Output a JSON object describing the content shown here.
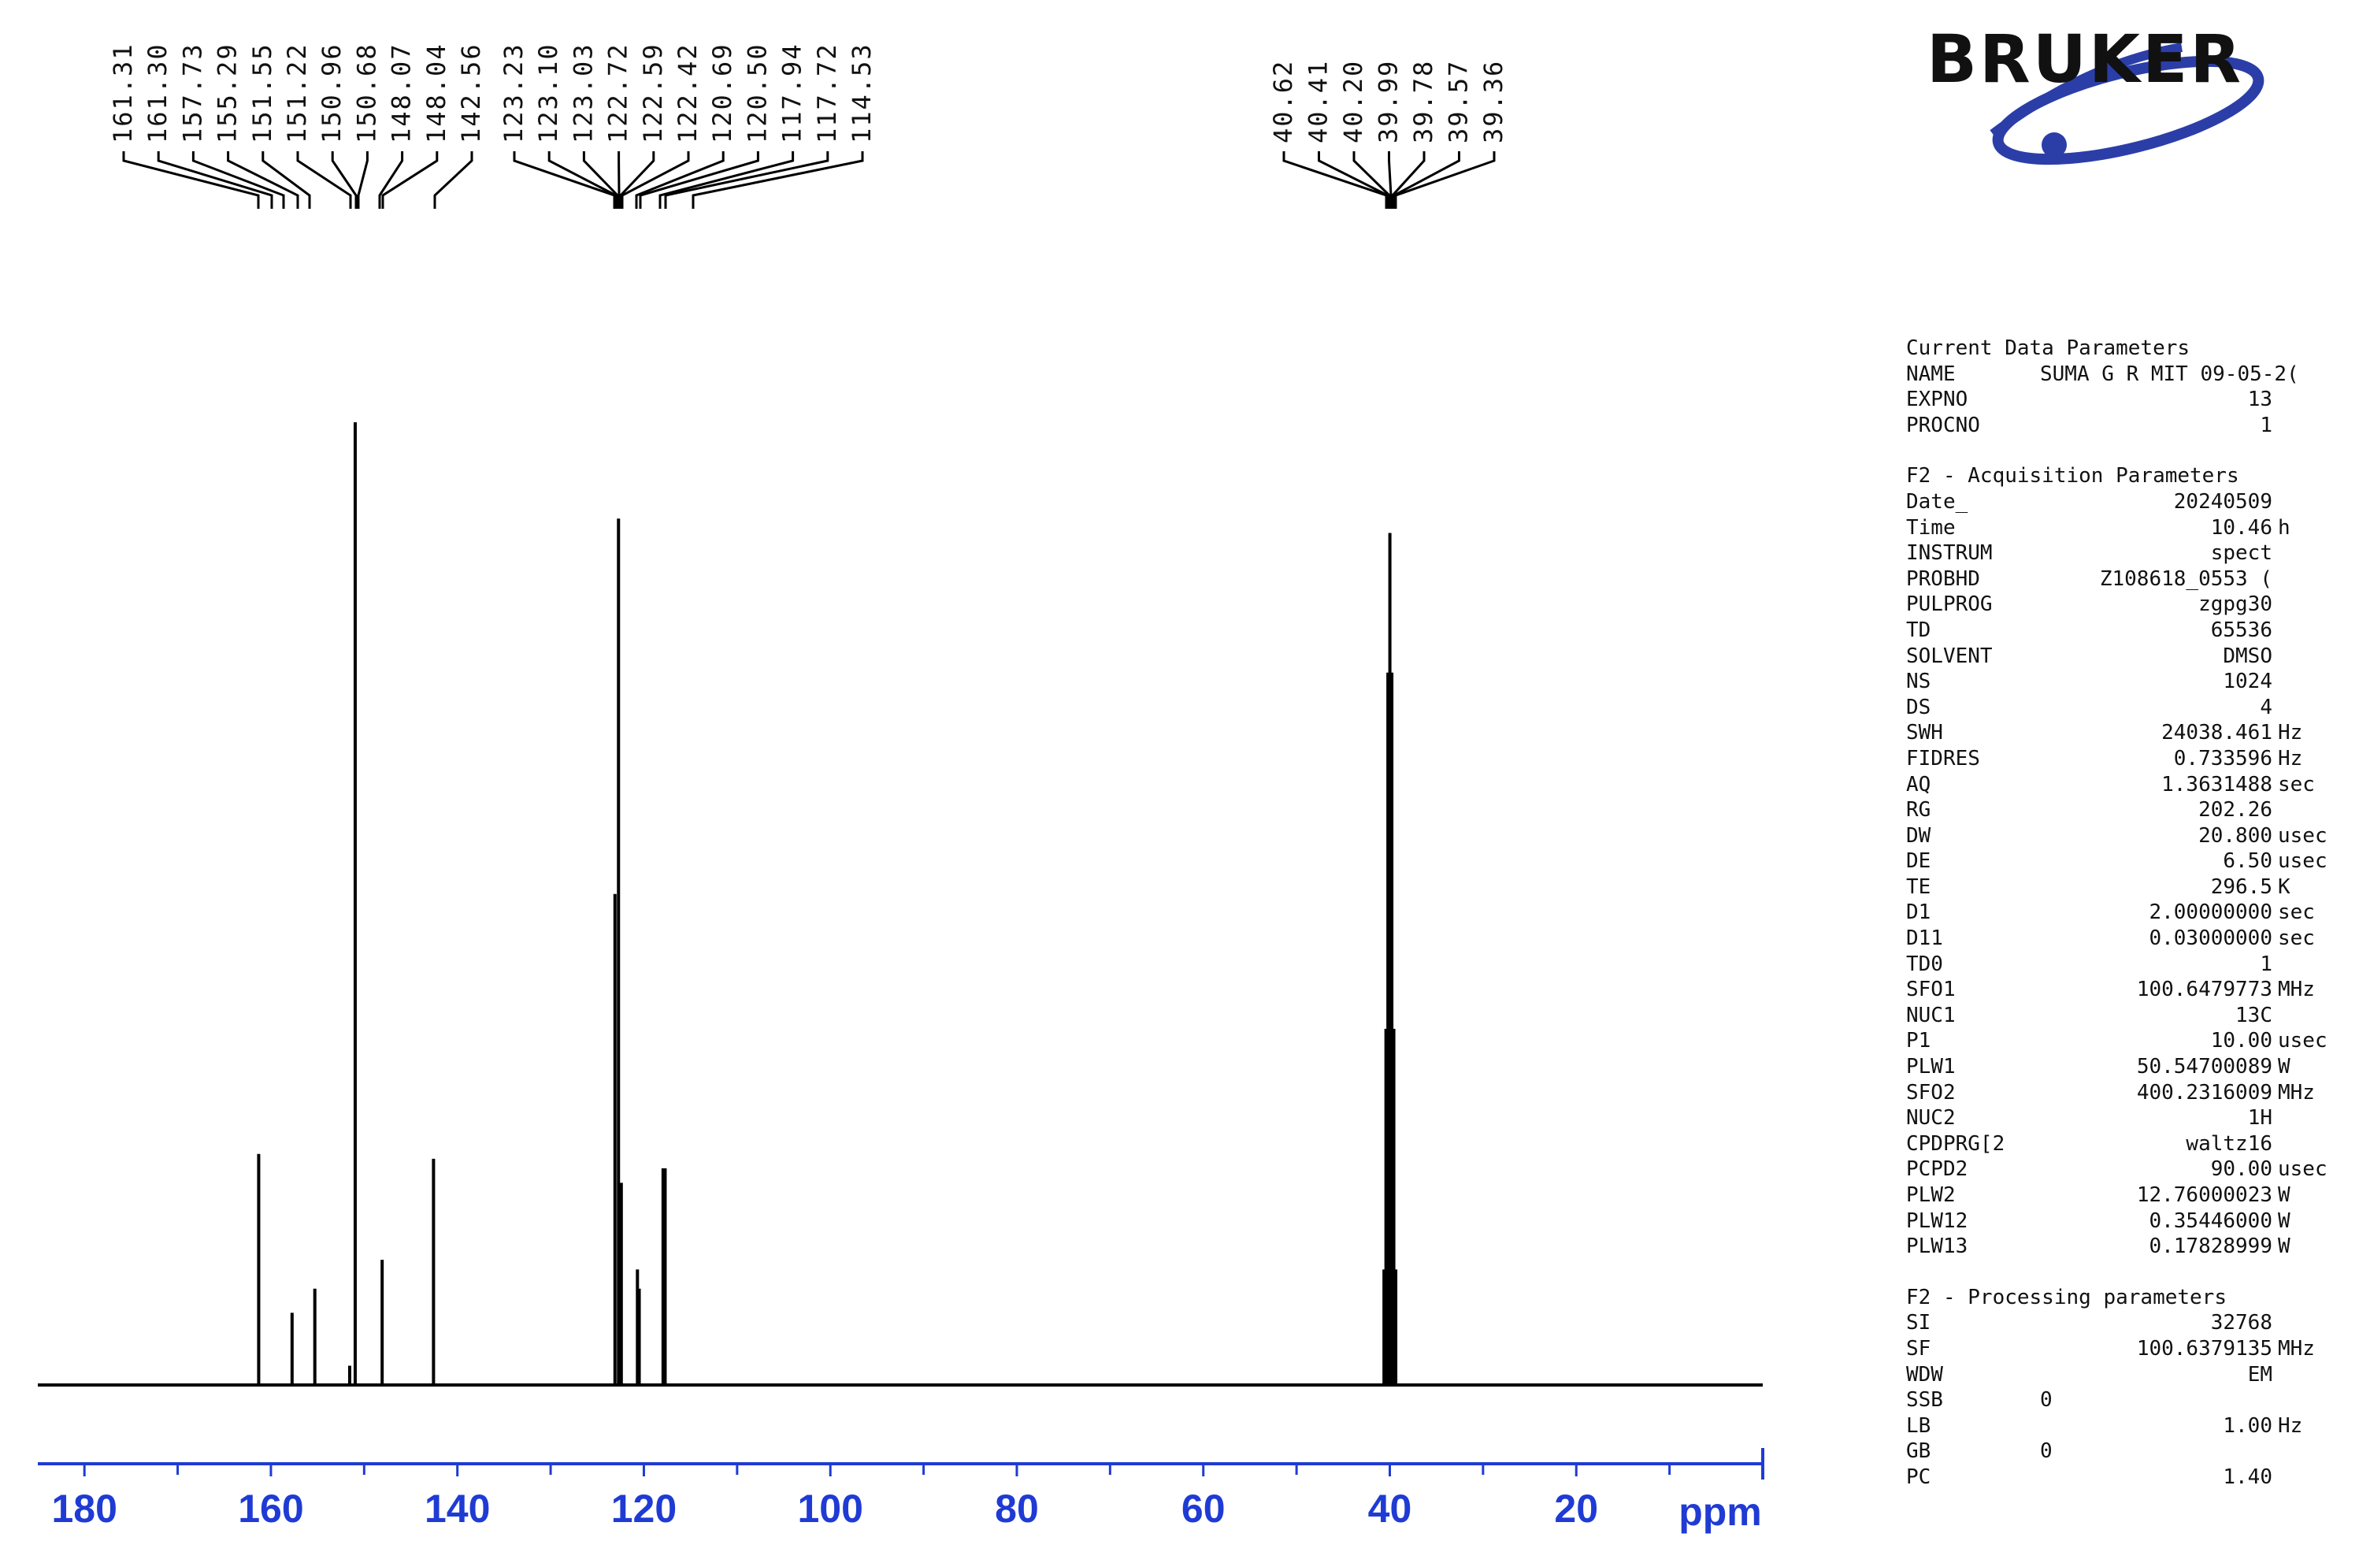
{
  "brand": {
    "logo_text": "BRUKER",
    "logo_color": "#2b3ea8"
  },
  "chart_data": {
    "type": "line",
    "x_axis": {
      "label": "ppm",
      "reversed": true,
      "range": [
        185,
        0
      ],
      "ticks": [
        180,
        160,
        140,
        120,
        100,
        80,
        60,
        40,
        20
      ],
      "minor_step": 10,
      "color": "#1f3bd4"
    },
    "peaks": [
      {
        "ppm": 161.31,
        "height": 0.24
      },
      {
        "ppm": 157.73,
        "height": 0.075
      },
      {
        "ppm": 155.29,
        "height": 0.1
      },
      {
        "ppm": 151.55,
        "height": 0.02
      },
      {
        "ppm": 150.96,
        "height": 1.0
      },
      {
        "ppm": 148.07,
        "height": 0.13
      },
      {
        "ppm": 142.56,
        "height": 0.235
      },
      {
        "ppm": 123.1,
        "height": 0.51
      },
      {
        "ppm": 122.72,
        "height": 0.9
      },
      {
        "ppm": 122.42,
        "height": 0.21
      },
      {
        "ppm": 120.69,
        "height": 0.12
      },
      {
        "ppm": 120.5,
        "height": 0.1
      },
      {
        "ppm": 117.94,
        "height": 0.225
      },
      {
        "ppm": 117.72,
        "height": 0.225
      },
      {
        "ppm": 40.62,
        "height": 0.12
      },
      {
        "ppm": 40.41,
        "height": 0.37
      },
      {
        "ppm": 40.2,
        "height": 0.74
      },
      {
        "ppm": 39.99,
        "height": 0.885
      },
      {
        "ppm": 39.78,
        "height": 0.74
      },
      {
        "ppm": 39.57,
        "height": 0.37
      },
      {
        "ppm": 39.36,
        "height": 0.12
      }
    ],
    "peak_label_groups": [
      {
        "labels": [
          "161.31",
          "161.30",
          "157.73",
          "155.29",
          "151.55",
          "151.22",
          "150.96",
          "150.68",
          "148.07",
          "148.04",
          "142.56"
        ]
      },
      {
        "labels": [
          "123.23",
          "123.10",
          "123.03",
          "122.72",
          "122.59",
          "122.42",
          "120.69",
          "120.50",
          "117.94",
          "117.72",
          "114.53"
        ]
      },
      {
        "labels": [
          "40.62",
          "40.41",
          "40.20",
          "39.99",
          "39.78",
          "39.57",
          "39.36"
        ]
      }
    ]
  },
  "parameters": [
    {
      "title": "Current Data Parameters",
      "rows": [
        {
          "key": "NAME",
          "value": "SUMA G R MIT 09-05-2(",
          "unit": "",
          "align": "left"
        },
        {
          "key": "EXPNO",
          "value": "13",
          "unit": ""
        },
        {
          "key": "PROCNO",
          "value": "1",
          "unit": ""
        }
      ]
    },
    {
      "title": "F2 - Acquisition Parameters",
      "rows": [
        {
          "key": "Date_",
          "value": "20240509",
          "unit": ""
        },
        {
          "key": "Time",
          "value": "10.46",
          "unit": "h"
        },
        {
          "key": "INSTRUM",
          "value": "spect",
          "unit": ""
        },
        {
          "key": "PROBHD",
          "value": "Z108618_0553 (",
          "unit": ""
        },
        {
          "key": "PULPROG",
          "value": "zgpg30",
          "unit": ""
        },
        {
          "key": "TD",
          "value": "65536",
          "unit": ""
        },
        {
          "key": "SOLVENT",
          "value": "DMSO",
          "unit": ""
        },
        {
          "key": "NS",
          "value": "1024",
          "unit": ""
        },
        {
          "key": "DS",
          "value": "4",
          "unit": ""
        },
        {
          "key": "SWH",
          "value": "24038.461",
          "unit": "Hz"
        },
        {
          "key": "FIDRES",
          "value": "0.733596",
          "unit": "Hz"
        },
        {
          "key": "AQ",
          "value": "1.3631488",
          "unit": "sec"
        },
        {
          "key": "RG",
          "value": "202.26",
          "unit": ""
        },
        {
          "key": "DW",
          "value": "20.800",
          "unit": "usec"
        },
        {
          "key": "DE",
          "value": "6.50",
          "unit": "usec"
        },
        {
          "key": "TE",
          "value": "296.5",
          "unit": "K"
        },
        {
          "key": "D1",
          "value": "2.00000000",
          "unit": "sec"
        },
        {
          "key": "D11",
          "value": "0.03000000",
          "unit": "sec"
        },
        {
          "key": "TD0",
          "value": "1",
          "unit": ""
        },
        {
          "key": "SFO1",
          "value": "100.6479773",
          "unit": "MHz"
        },
        {
          "key": "NUC1",
          "value": "13C",
          "unit": ""
        },
        {
          "key": "P1",
          "value": "10.00",
          "unit": "usec"
        },
        {
          "key": "PLW1",
          "value": "50.54700089",
          "unit": "W"
        },
        {
          "key": "SFO2",
          "value": "400.2316009",
          "unit": "MHz"
        },
        {
          "key": "NUC2",
          "value": "1H",
          "unit": ""
        },
        {
          "key": "CPDPRG[2",
          "value": "waltz16",
          "unit": ""
        },
        {
          "key": "PCPD2",
          "value": "90.00",
          "unit": "usec"
        },
        {
          "key": "PLW2",
          "value": "12.76000023",
          "unit": "W"
        },
        {
          "key": "PLW12",
          "value": "0.35446000",
          "unit": "W"
        },
        {
          "key": "PLW13",
          "value": "0.17828999",
          "unit": "W"
        }
      ]
    },
    {
      "title": "F2 - Processing parameters",
      "rows": [
        {
          "key": "SI",
          "value": "32768",
          "unit": ""
        },
        {
          "key": "SF",
          "value": "100.6379135",
          "unit": "MHz"
        },
        {
          "key": "WDW",
          "value": "EM",
          "unit": ""
        },
        {
          "key": "SSB",
          "value": "0",
          "unit": "",
          "align": "left"
        },
        {
          "key": "LB",
          "value": "1.00",
          "unit": "Hz"
        },
        {
          "key": "GB",
          "value": "0",
          "unit": "",
          "align": "left"
        },
        {
          "key": "PC",
          "value": "1.40",
          "unit": ""
        }
      ]
    }
  ]
}
